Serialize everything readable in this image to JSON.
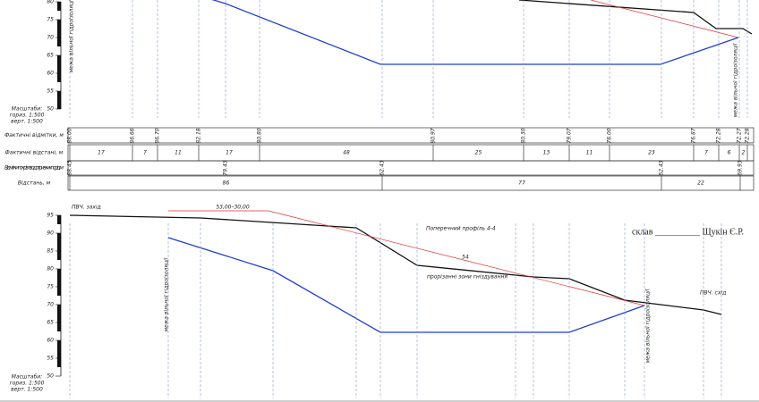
{
  "top_profile": {
    "scale_labels": [
      "80",
      "75",
      "70",
      "65",
      "60",
      "55",
      "50"
    ],
    "scale_caption": [
      "Масштаби:",
      "гориз. 1:500",
      "верт. 1:500"
    ],
    "left_note": "межа вільної гідроізоляції",
    "right_note": "межа вільної гідроізоляції"
  },
  "table": {
    "row_labels": [
      "Фактичні відмітки, м",
      "Фактичні відстані, м",
      "Відмітки покрівлі водотривких порід, м",
      "Відстань, м"
    ],
    "elevations": [
      "88.00",
      "86.66",
      "86.70",
      "82.18",
      "80.80",
      "80.97",
      "80.30",
      "79.07",
      "78.00",
      "76.87",
      "72.28",
      "72.27",
      "72.28"
    ],
    "distances": [
      "17",
      "7",
      "11",
      "17",
      "48",
      "25",
      "13",
      "11",
      "23",
      "7",
      "6",
      "2"
    ],
    "roof_elevations": [
      "88.43",
      "79.43",
      "62.43",
      "62.43",
      "69.93"
    ],
    "roof_distances": [
      "86",
      "77",
      "22"
    ]
  },
  "bottom_profile": {
    "scale_labels": [
      "95",
      "90",
      "85",
      "80",
      "75",
      "70",
      "65",
      "60",
      "55",
      "50"
    ],
    "scale_caption": [
      "Масштаби:",
      "гориз. 1:500",
      "верт. 1:500"
    ],
    "west_label": "ПВЧ. захід",
    "east_label": "ПВЧ. схід",
    "title": "Поперечний профіль 4-4",
    "author": "склав __________ Щукін Є.Р.",
    "red_top_label": "53,00–30,00",
    "red_mid_label": "54",
    "red_note": "прорізанні зони гніздування",
    "left_note": "межа вільної гідроізоляції",
    "right_note": "межа вільної гідроізоляції"
  }
}
